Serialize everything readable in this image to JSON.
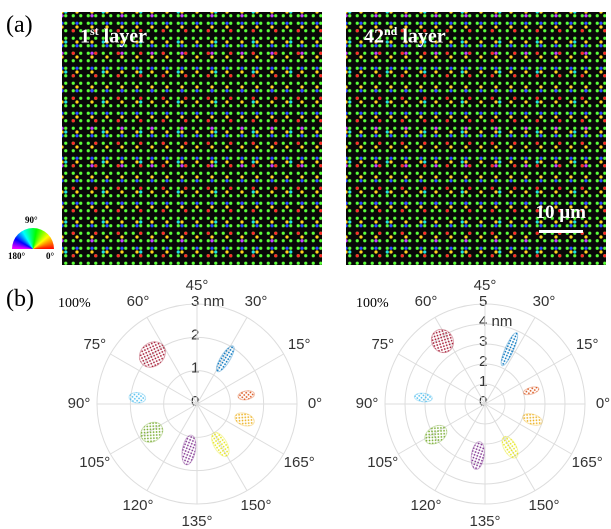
{
  "panel_a": {
    "label": "(a)",
    "images": [
      {
        "number": "1",
        "suffix": "st",
        "text": "layer"
      },
      {
        "number": "42",
        "suffix": "nd",
        "text": "layer"
      }
    ],
    "wheel": {
      "top": "90°",
      "left": "180°",
      "right": "0°"
    },
    "scale_bar": "10 µm"
  },
  "panel_b": {
    "label": "(b)",
    "corner": "100%",
    "angle_ticks": [
      {
        "value": 0,
        "label": "0°"
      },
      {
        "value": 15,
        "label": "15°"
      },
      {
        "value": 30,
        "label": "30°"
      },
      {
        "value": 45,
        "label": "45°"
      },
      {
        "value": 60,
        "label": "60°"
      },
      {
        "value": 75,
        "label": "75°"
      },
      {
        "value": 90,
        "label": "90°"
      },
      {
        "value": 105,
        "label": "105°"
      },
      {
        "value": 120,
        "label": "120°"
      },
      {
        "value": 135,
        "label": "135°"
      },
      {
        "value": 150,
        "label": "150°"
      },
      {
        "value": 165,
        "label": "165°"
      }
    ],
    "plots": [
      {
        "rlim": [
          0,
          3
        ],
        "rticks": [
          0,
          1,
          2,
          {
            "value": 3,
            "label": "3 nm"
          }
        ],
        "clusters": [
          {
            "color": "#0072bd",
            "angle": 29,
            "r": 1.6,
            "r_spread": 0.9,
            "angle_spread": 5
          },
          {
            "color": "#a2142f",
            "angle": 66,
            "r": 2.0,
            "r_spread": 0.7,
            "angle_spread": 12
          },
          {
            "color": "#4dbeee",
            "angle": 87,
            "r": 1.8,
            "r_spread": 0.5,
            "angle_spread": 5
          },
          {
            "color": "#d95319",
            "angle": 5,
            "r": 1.5,
            "r_spread": 0.5,
            "angle_spread": 5
          },
          {
            "color": "#edb120",
            "angle": 171,
            "r": 1.5,
            "r_spread": 0.6,
            "angle_spread": 7
          },
          {
            "color": "#e6e61a",
            "angle": 150,
            "r": 1.4,
            "r_spread": 0.8,
            "angle_spread": 8
          },
          {
            "color": "#7e2f8e",
            "angle": 130,
            "r": 1.4,
            "r_spread": 0.9,
            "angle_spread": 8
          },
          {
            "color": "#77ac30",
            "angle": 106,
            "r": 1.6,
            "r_spread": 0.7,
            "angle_spread": 10
          }
        ]
      },
      {
        "rlim": [
          0,
          5
        ],
        "rticks": [
          0,
          1,
          2,
          3,
          {
            "value": 4,
            "label": "4 nm"
          },
          5
        ],
        "clusters": [
          {
            "color": "#0072bd",
            "angle": 33,
            "r": 3.0,
            "r_spread": 1.8,
            "angle_spread": 4
          },
          {
            "color": "#a2142f",
            "angle": 62,
            "r": 3.8,
            "r_spread": 1.2,
            "angle_spread": 8
          },
          {
            "color": "#4dbeee",
            "angle": 87,
            "r": 3.1,
            "r_spread": 0.9,
            "angle_spread": 4
          },
          {
            "color": "#d95319",
            "angle": 8,
            "r": 2.4,
            "r_spread": 0.8,
            "angle_spread": 4
          },
          {
            "color": "#edb120",
            "angle": 171,
            "r": 2.5,
            "r_spread": 1.0,
            "angle_spread": 6
          },
          {
            "color": "#e6e61a",
            "angle": 150,
            "r": 2.5,
            "r_spread": 1.2,
            "angle_spread": 7
          },
          {
            "color": "#7e2f8e",
            "angle": 131,
            "r": 2.6,
            "r_spread": 1.4,
            "angle_spread": 7
          },
          {
            "color": "#77ac30",
            "angle": 106,
            "r": 2.9,
            "r_spread": 1.2,
            "angle_spread": 8
          }
        ]
      }
    ]
  }
}
